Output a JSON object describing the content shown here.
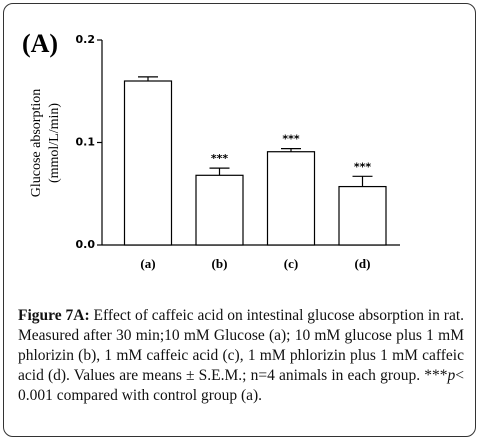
{
  "chart_data": {
    "type": "bar",
    "panel_label": "(A)",
    "y_label": [
      "Glucose absorption",
      "(mmol/L/min)"
    ],
    "categories": [
      "(a)",
      "(b)",
      "(c)",
      "(d)"
    ],
    "values": [
      0.16,
      0.068,
      0.091,
      0.057
    ],
    "errors": [
      0.004,
      0.007,
      0.003,
      0.01
    ],
    "significance": [
      null,
      "***",
      "***",
      "***"
    ],
    "color": "#ffffff",
    "ylim": [
      0,
      0.2
    ],
    "yticks": [
      {
        "value": 0,
        "label": "0.0"
      },
      0.1,
      0.2
    ]
  },
  "caption": {
    "label": "Figure 7A:",
    "text": "Effect of caffeic acid on intestinal glucose absorption in rat. Measured after 30 min;10 mM Glucose (a); 10 mM glucose plus 1 mM phlorizin (b), 1 mM caffeic acid (c), 1 mM phlorizin plus 1 mM caffeic acid (d). Values are means ± S.E.M.; n=4 animals in each group. ***",
    "italic": "p",
    "text_end": "< 0.001 compared with control group (a)."
  }
}
